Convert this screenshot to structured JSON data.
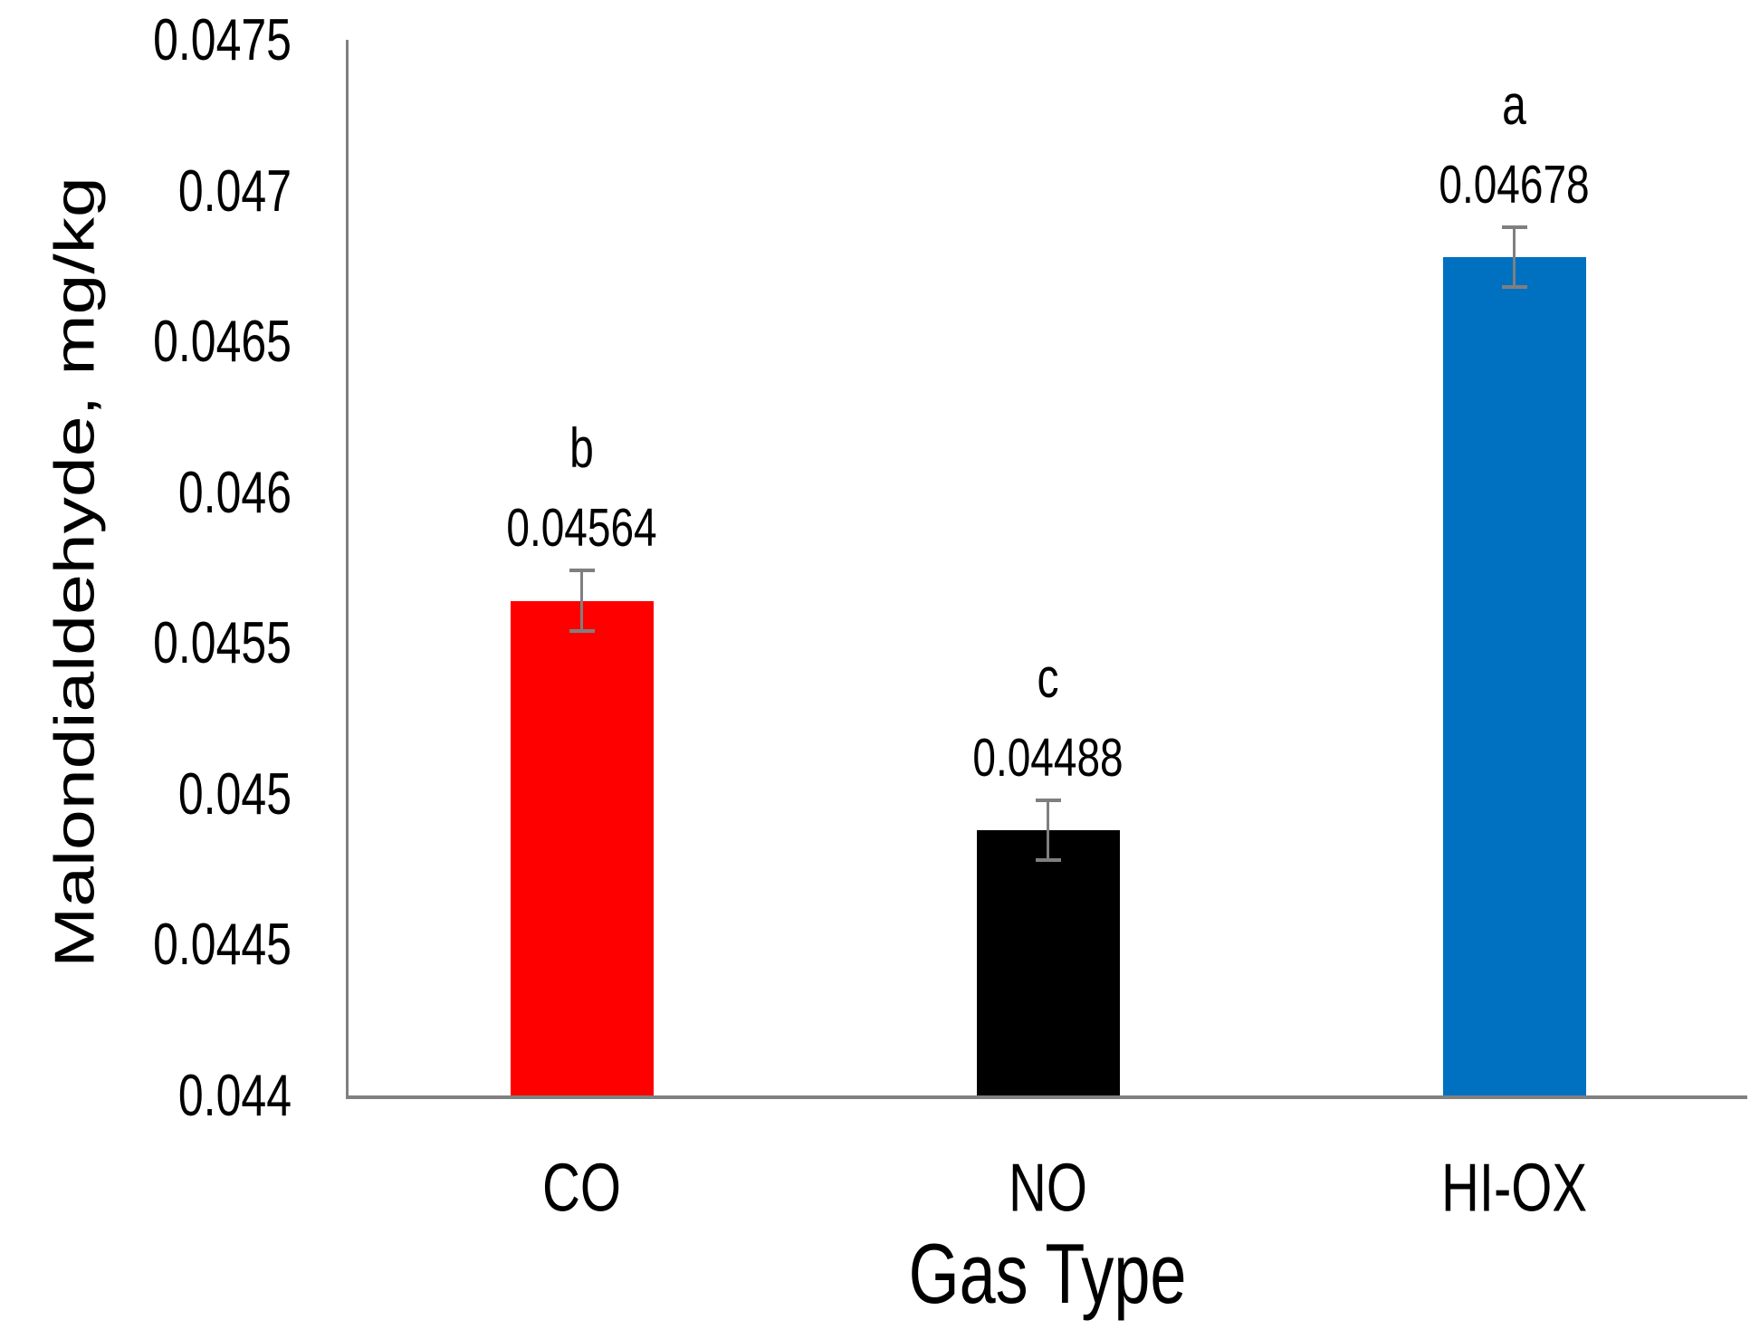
{
  "chart_data": {
    "type": "bar",
    "title": "",
    "xlabel": "Gas Type",
    "ylabel": "Malondialdehyde, mg/kg",
    "categories": [
      "CO",
      "NO",
      "HI-OX"
    ],
    "values": [
      0.04564,
      0.04488,
      0.04678
    ],
    "value_labels": [
      "0.04564",
      "0.04488",
      "0.04678"
    ],
    "sig_letters": [
      "b",
      "c",
      "a"
    ],
    "errors": [
      0.0001,
      0.0001,
      0.0001
    ],
    "bar_colors": [
      "#FF0000",
      "#000000",
      "#0070C0"
    ],
    "error_color": "#7F7F7F",
    "axis_color": "#808080",
    "ylim": [
      0.044,
      0.0475
    ],
    "ytick_step": 0.0005,
    "yticks": [
      "0.0475",
      "0.047",
      "0.0465",
      "0.046",
      "0.0455",
      "0.045",
      "0.0445",
      "0.044"
    ],
    "grid": false,
    "legend_position": "none"
  }
}
